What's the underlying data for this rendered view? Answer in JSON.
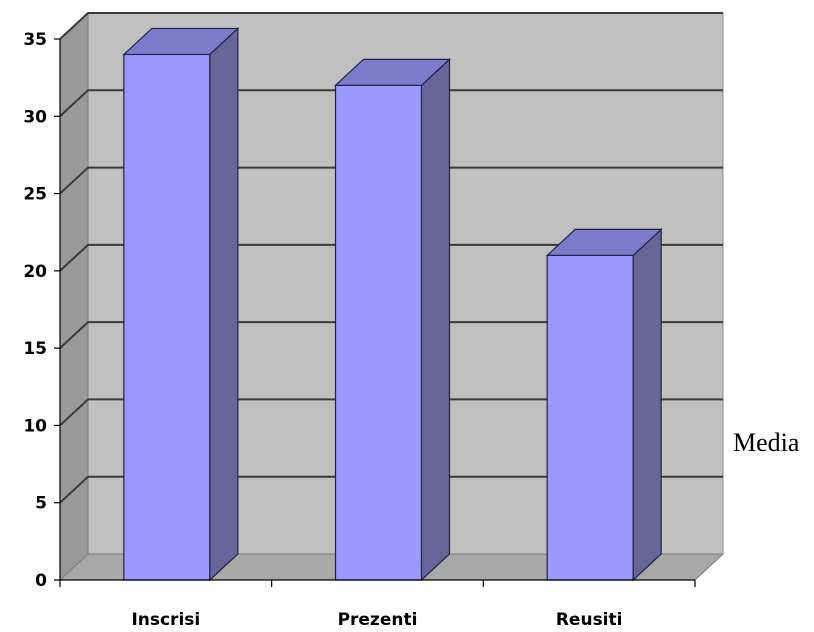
{
  "chart_data": {
    "type": "bar",
    "categories": [
      "Inscrisi",
      "Prezenti",
      "Reusiti"
    ],
    "series": [
      {
        "name": "Media",
        "values": [
          34,
          32,
          21
        ]
      }
    ],
    "title": "",
    "xlabel": "",
    "ylabel": "",
    "ylim": [
      0,
      35
    ],
    "yticks": [
      0,
      5,
      10,
      15,
      20,
      25,
      30,
      35
    ],
    "grid": true,
    "three_d": true,
    "legend_position": "right",
    "colors": {
      "bar_front": "#9999ff",
      "bar_side": "#666699",
      "bar_top": "#7b7bcc",
      "wall": "#c0c0c0",
      "side_wall": "#9a9a9a",
      "floor": "#a8a8a8",
      "gridline": "#3a3a3a"
    }
  }
}
